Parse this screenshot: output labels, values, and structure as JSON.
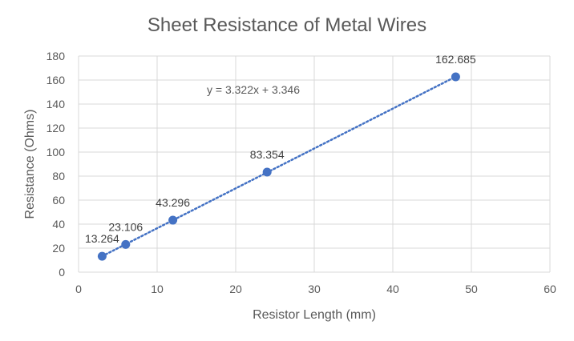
{
  "chart_data": {
    "type": "scatter",
    "title": "Sheet Resistance of Metal Wires",
    "xlabel": "Resistor Length (mm)",
    "ylabel": "Resistance (Ohms)",
    "xlim": [
      0,
      60
    ],
    "ylim": [
      0,
      180
    ],
    "x_ticks": [
      0,
      10,
      20,
      30,
      40,
      50,
      60
    ],
    "y_ticks": [
      0,
      20,
      40,
      60,
      80,
      100,
      120,
      140,
      160,
      180
    ],
    "grid": true,
    "legend": "none",
    "series": [
      {
        "points": [
          {
            "x": 3,
            "y": 13.264,
            "label": "13.264"
          },
          {
            "x": 6,
            "y": 23.106,
            "label": "23.106"
          },
          {
            "x": 12,
            "y": 43.296,
            "label": "43.296"
          },
          {
            "x": 24,
            "y": 83.354,
            "label": "83.354"
          },
          {
            "x": 48,
            "y": 162.685,
            "label": "162.685"
          }
        ],
        "color": "#4472C4"
      }
    ],
    "trendline": {
      "type": "linear",
      "slope": 3.322,
      "intercept": 3.346,
      "x_range": [
        3,
        48
      ],
      "equation_label": "y = 3.322x + 3.346",
      "style": "dotted",
      "color": "#4472C4"
    }
  }
}
